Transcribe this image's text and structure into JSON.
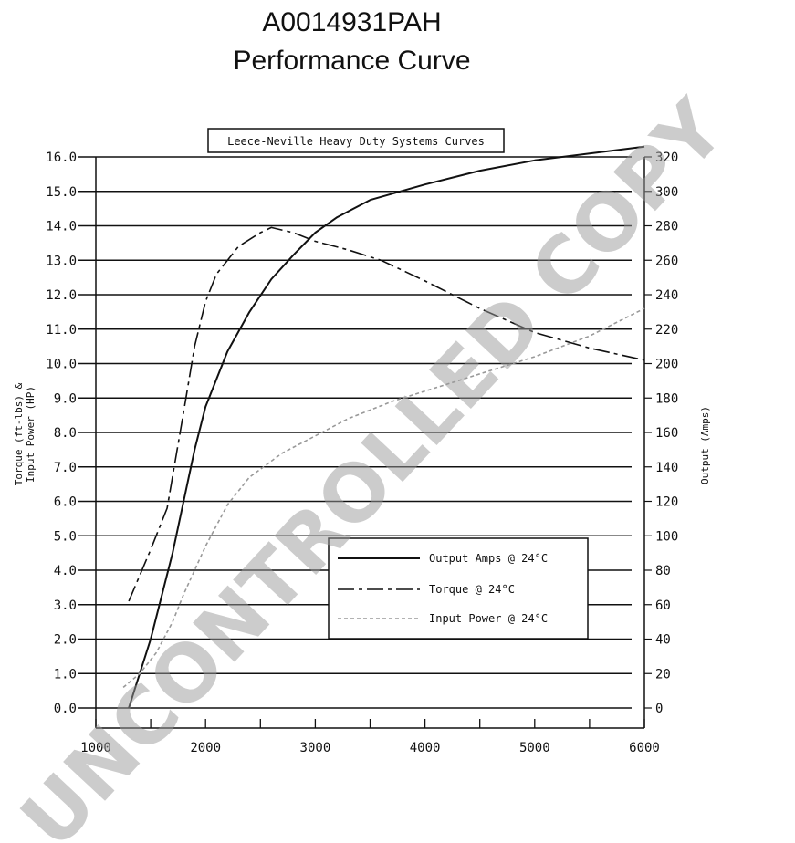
{
  "header": {
    "line1": "A0014931PAH",
    "line2": "Performance Curve"
  },
  "chart_data": {
    "type": "line",
    "boxed_title": "Leece-Neville Heavy Duty Systems Curves",
    "xlabel": "",
    "ylabel_left": "Torque (ft-lbs) & Input Power (HP)",
    "ylabel_right": "Output (Amps)",
    "xlim": [
      1000,
      6000
    ],
    "ylim_left": [
      0,
      16
    ],
    "ylim_right": [
      0,
      320
    ],
    "x_ticks": [
      "1000",
      "2000",
      "3000",
      "4000",
      "5000",
      "6000"
    ],
    "y_left_ticks": [
      "0.0",
      "1.0",
      "2.0",
      "3.0",
      "4.0",
      "5.0",
      "6.0",
      "7.0",
      "8.0",
      "9.0",
      "10.0",
      "11.0",
      "12.0",
      "13.0",
      "14.0",
      "15.0",
      "16.0"
    ],
    "y_right_ticks": [
      "0",
      "20",
      "40",
      "60",
      "80",
      "100",
      "120",
      "140",
      "160",
      "180",
      "200",
      "220",
      "240",
      "260",
      "280",
      "300",
      "320"
    ],
    "grid": true,
    "legend_position": "lower-right",
    "series": [
      {
        "name": "Output Amps @ 24°C",
        "axis": "right",
        "style": "solid",
        "color": "#111111",
        "x": [
          1300,
          1500,
          1700,
          1900,
          2000,
          2200,
          2400,
          2600,
          2800,
          3000,
          3200,
          3500,
          4000,
          4500,
          5000,
          5500,
          6000
        ],
        "y": [
          0,
          40,
          90,
          150,
          175,
          207,
          230,
          249,
          263,
          276,
          285,
          295,
          304,
          312,
          318,
          322,
          326
        ]
      },
      {
        "name": "Torque @ 24°C",
        "axis": "left",
        "style": "dashdot",
        "color": "#111111",
        "x": [
          1300,
          1500,
          1650,
          1800,
          1900,
          2000,
          2100,
          2300,
          2500,
          2600,
          2800,
          3000,
          3300,
          3600,
          4000,
          4500,
          5000,
          5500,
          6000
        ],
        "y": [
          3.1,
          4.6,
          5.8,
          8.6,
          10.5,
          11.8,
          12.6,
          13.4,
          13.8,
          13.95,
          13.8,
          13.55,
          13.3,
          13.0,
          12.4,
          11.6,
          10.9,
          10.45,
          10.1
        ]
      },
      {
        "name": "Input Power @ 24°C",
        "axis": "left",
        "style": "dotted",
        "color": "#999999",
        "x": [
          1250,
          1400,
          1550,
          1700,
          1800,
          2000,
          2200,
          2400,
          2700,
          3000,
          3300,
          3700,
          4000,
          4500,
          5000,
          5500,
          6000
        ],
        "y": [
          0.6,
          1.0,
          1.6,
          2.5,
          3.3,
          4.7,
          5.9,
          6.7,
          7.4,
          7.9,
          8.4,
          8.9,
          9.2,
          9.7,
          10.2,
          10.8,
          11.6
        ]
      }
    ]
  },
  "watermark": "UNCONTROLLED COPY"
}
